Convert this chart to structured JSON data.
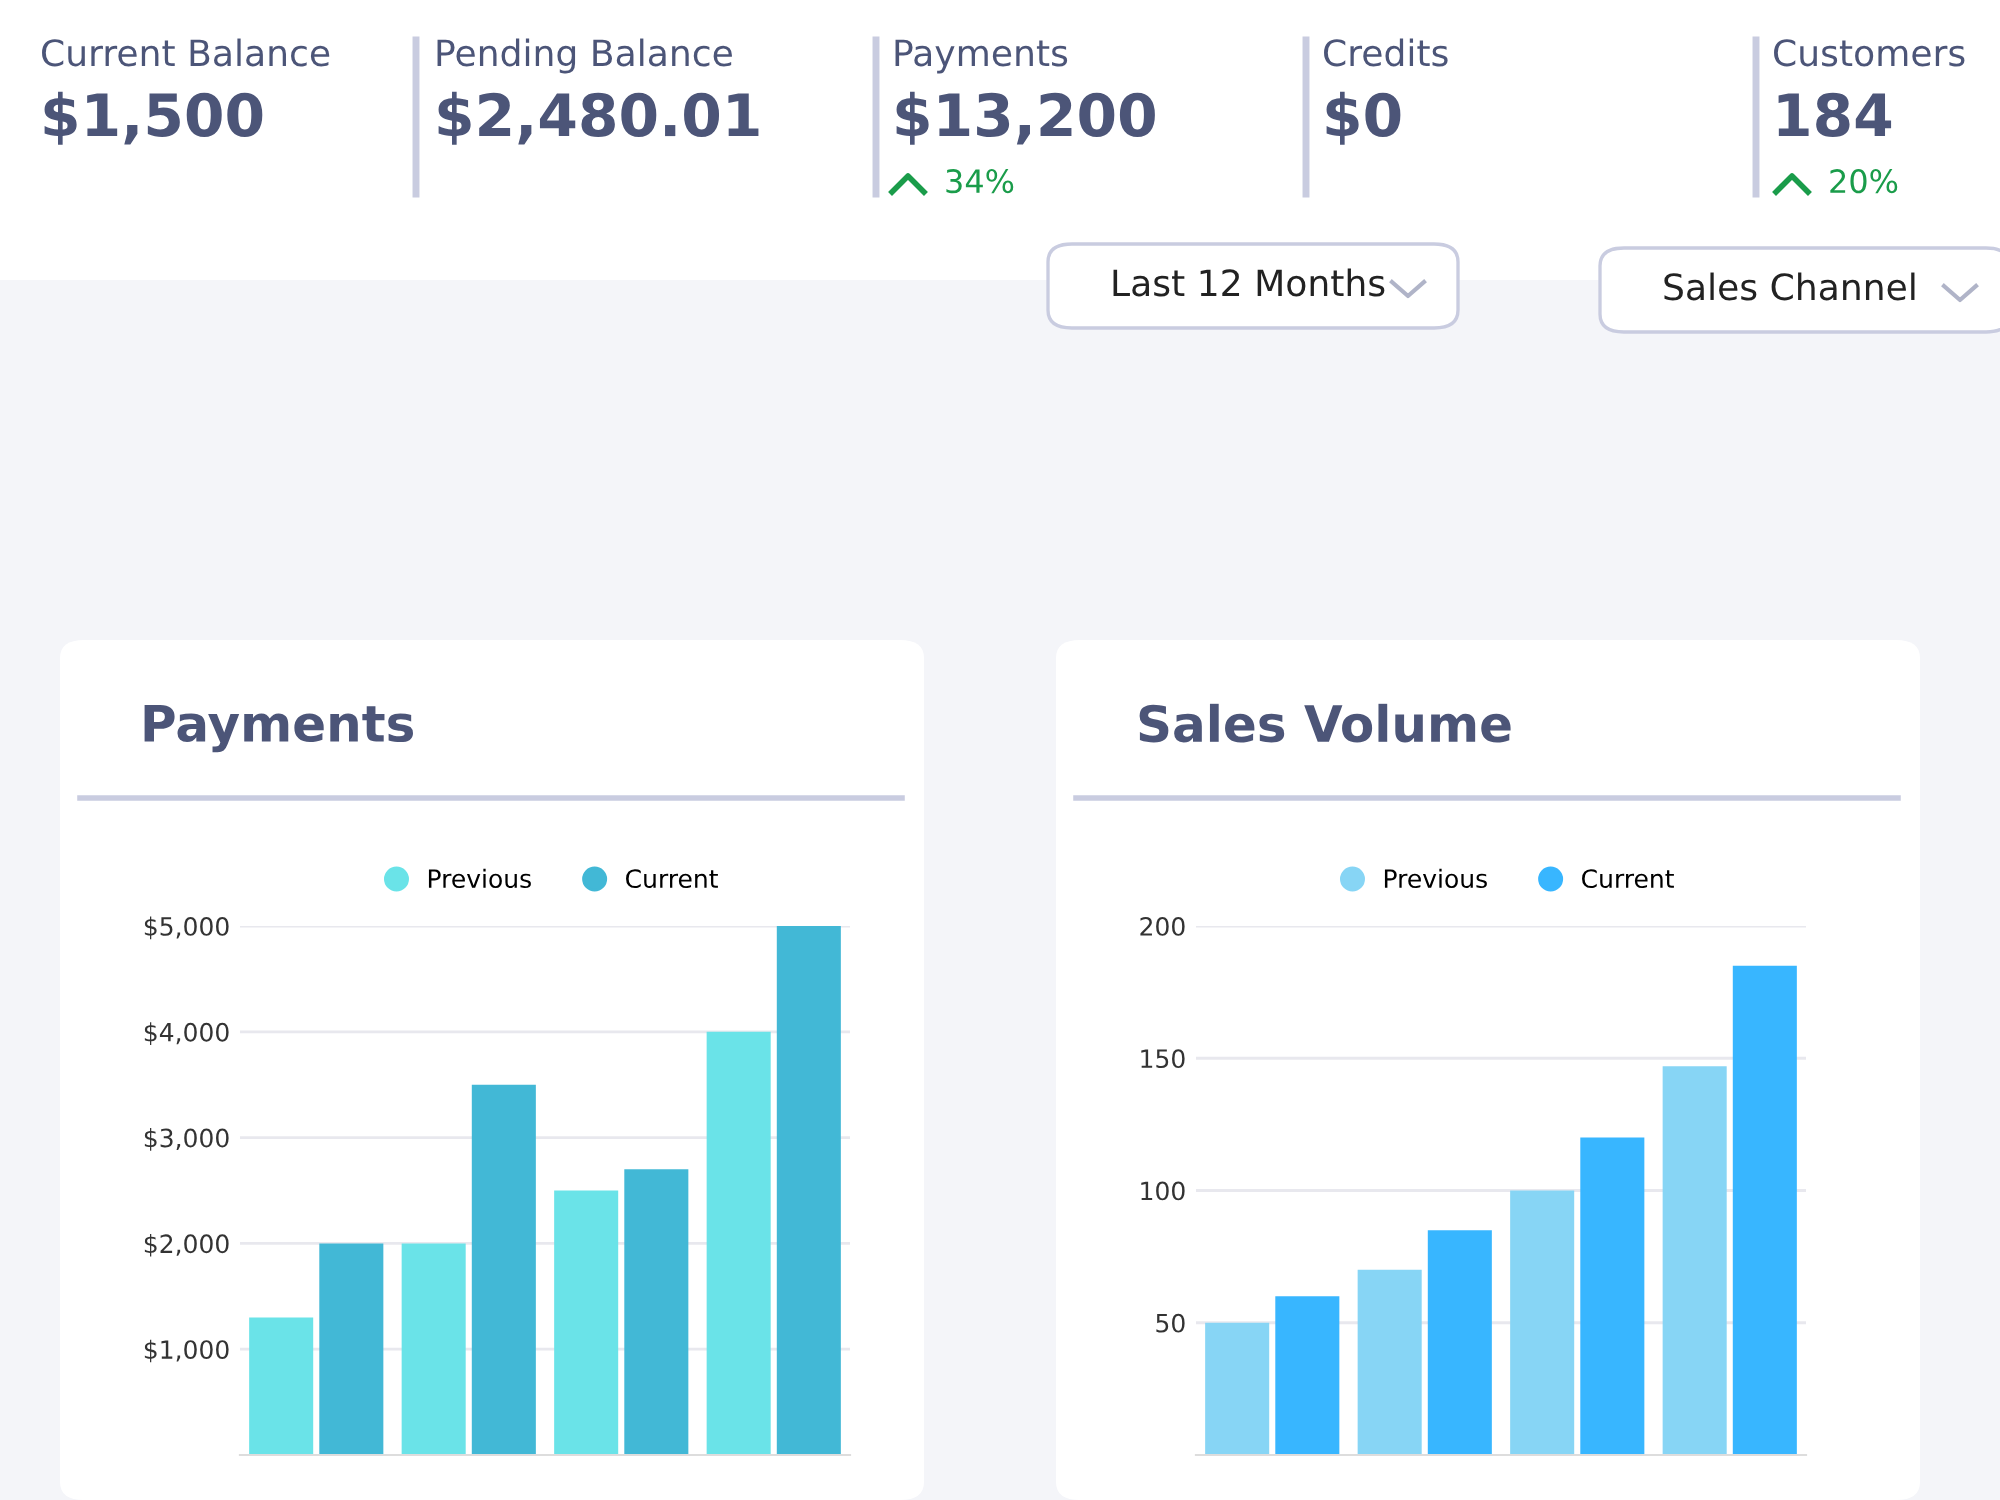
{
  "chart_data": [
    {
      "type": "other",
      "annotations": [
        "Current Balance",
        "$1,500",
        "Pending Balance",
        "$2,480.01",
        "Payments",
        "$13,200",
        "34%",
        "Credits",
        "$0",
        "Customers",
        "184",
        "20%",
        "Last 12 Months",
        "Sales Channel"
      ]
    },
    {
      "type": "bar",
      "title": "Payments",
      "categories": [
        null,
        null,
        null,
        null
      ],
      "series": [
        {
          "name": "Previous",
          "color": "#6ae3e8",
          "values": [
            1300,
            2000,
            2500,
            4000
          ]
        },
        {
          "name": "Current",
          "color": "#42b8d6",
          "values": [
            2000,
            3500,
            2700,
            5000
          ]
        }
      ],
      "ylim": [
        0,
        5000
      ],
      "yticks": [
        {
          "value": 1000,
          "label": "$1,000"
        },
        {
          "value": 2000,
          "label": "$2,000"
        },
        {
          "value": 3000,
          "label": "$3,000"
        },
        {
          "value": 4000,
          "label": "$4,000"
        },
        {
          "value": 5000,
          "label": "$5,000"
        }
      ],
      "grid": "y",
      "legend": "top"
    },
    {
      "type": "bar",
      "title": "Sales Volume",
      "categories": [
        null,
        null,
        null,
        null
      ],
      "series": [
        {
          "name": "Previous",
          "color": "#87d5f5",
          "values": [
            50,
            70,
            100,
            147
          ]
        },
        {
          "name": "Current",
          "color": "#38b6ff",
          "values": [
            60,
            85,
            120,
            185
          ]
        }
      ],
      "ylim": [
        0,
        200
      ],
      "yticks": [
        50,
        100,
        150,
        200
      ],
      "grid": "y",
      "legend": "top"
    }
  ]
}
